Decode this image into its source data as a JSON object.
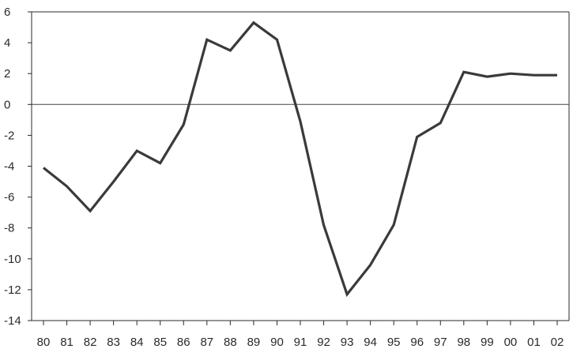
{
  "chart_data": {
    "type": "line",
    "title": "",
    "xlabel": "",
    "ylabel": "",
    "categories": [
      "80",
      "81",
      "82",
      "83",
      "84",
      "85",
      "86",
      "87",
      "88",
      "89",
      "90",
      "91",
      "92",
      "93",
      "94",
      "95",
      "96",
      "97",
      "98",
      "99",
      "00",
      "01",
      "02"
    ],
    "series": [
      {
        "values": [
          -4.1,
          -5.3,
          -6.9,
          -5.0,
          -3.0,
          -3.8,
          -1.3,
          4.2,
          3.5,
          5.3,
          4.2,
          -1.1,
          -7.8,
          -12.3,
          -10.4,
          -7.8,
          -2.1,
          -1.2,
          2.1,
          1.8,
          2.0,
          1.9,
          1.9
        ],
        "color": "#3a3a3a"
      }
    ],
    "ylim": [
      -14,
      6
    ],
    "yticks": [
      6,
      4,
      2,
      0,
      -2,
      -4,
      -6,
      -8,
      -10,
      -12,
      -14
    ],
    "grid": false,
    "zero_line": true
  }
}
